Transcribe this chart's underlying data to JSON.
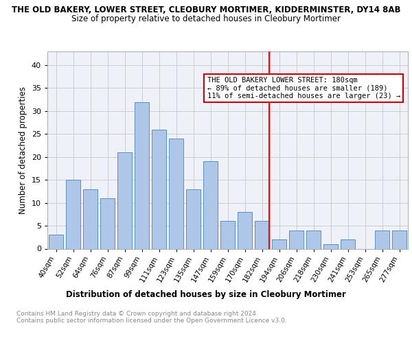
{
  "title": "THE OLD BAKERY, LOWER STREET, CLEOBURY MORTIMER, KIDDERMINSTER, DY14 8AB",
  "subtitle": "Size of property relative to detached houses in Cleobury Mortimer",
  "xlabel": "Distribution of detached houses by size in Cleobury Mortimer",
  "ylabel": "Number of detached properties",
  "categories": [
    "40sqm",
    "52sqm",
    "64sqm",
    "76sqm",
    "87sqm",
    "99sqm",
    "111sqm",
    "123sqm",
    "135sqm",
    "147sqm",
    "159sqm",
    "170sqm",
    "182sqm",
    "194sqm",
    "206sqm",
    "218sqm",
    "230sqm",
    "241sqm",
    "253sqm",
    "265sqm",
    "277sqm"
  ],
  "values": [
    3,
    15,
    13,
    11,
    21,
    32,
    26,
    24,
    13,
    19,
    6,
    8,
    6,
    2,
    4,
    4,
    1,
    2,
    0,
    4,
    4
  ],
  "bar_color": "#aec6e8",
  "bar_edge_color": "#5a8fc0",
  "grid_color": "#cccccc",
  "bg_color": "#eef2f8",
  "red_line_index": 12,
  "annotation_title": "THE OLD BAKERY LOWER STREET: 180sqm",
  "annotation_line1": "← 89% of detached houses are smaller (189)",
  "annotation_line2": "11% of semi-detached houses are larger (23) →",
  "annotation_box_color": "#ffffff",
  "annotation_border_color": "#cc0000",
  "footer": "Contains HM Land Registry data © Crown copyright and database right 2024.\nContains public sector information licensed under the Open Government Licence v3.0.",
  "ylim": [
    0,
    43
  ],
  "yticks": [
    0,
    5,
    10,
    15,
    20,
    25,
    30,
    35,
    40
  ]
}
